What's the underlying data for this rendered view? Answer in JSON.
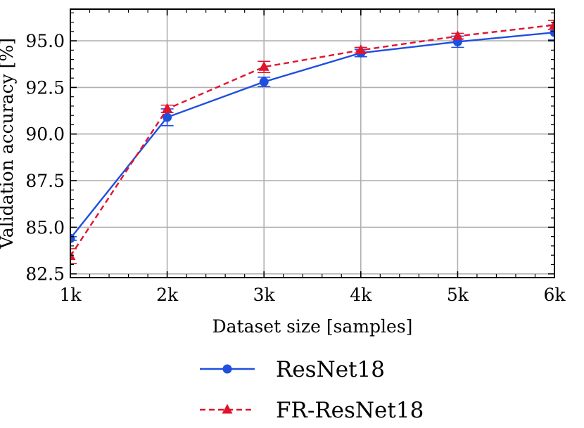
{
  "chart_data": {
    "type": "line",
    "title": "",
    "xlabel": "Dataset size [samples]",
    "ylabel": "Validation accuracy [%]",
    "x": [
      1,
      2,
      3,
      4,
      5,
      6
    ],
    "x_tick_labels": [
      "1k",
      "2k",
      "3k",
      "4k",
      "5k",
      "6k"
    ],
    "xlim": [
      1,
      6
    ],
    "ylim": [
      82.3,
      96.7
    ],
    "y_ticks": [
      82.5,
      85.0,
      87.5,
      90.0,
      92.5,
      95.0
    ],
    "y_tick_labels": [
      "82.5",
      "85.0",
      "87.5",
      "90.0",
      "92.5",
      "95.0"
    ],
    "grid": true,
    "legend_position": "bottom",
    "series": [
      {
        "name": "ResNet18",
        "color": "#1f4fe0",
        "line_style": "solid",
        "marker": "circle",
        "values": [
          84.4,
          90.9,
          92.8,
          94.35,
          94.95,
          95.45
        ],
        "error": [
          0.1,
          0.45,
          0.25,
          0.2,
          0.3,
          0.4
        ]
      },
      {
        "name": "FR-ResNet18",
        "color": "#e0142e",
        "line_style": "dashed",
        "marker": "triangle",
        "values": [
          83.45,
          91.35,
          93.6,
          94.5,
          95.25,
          95.85
        ],
        "error": [
          0.4,
          0.2,
          0.3,
          0.15,
          0.15,
          0.25
        ]
      }
    ]
  }
}
